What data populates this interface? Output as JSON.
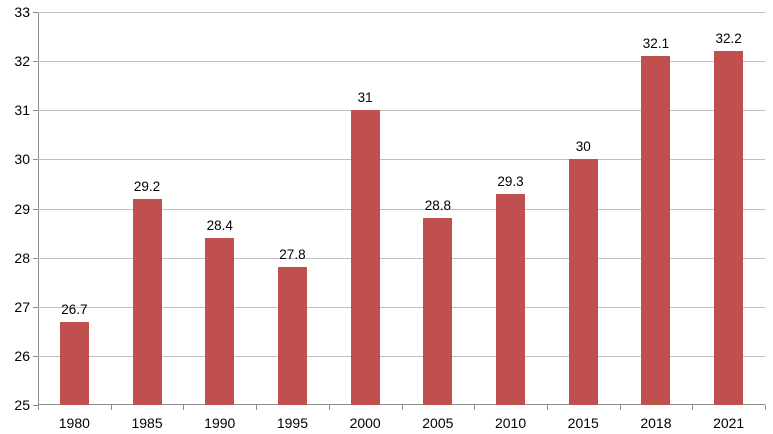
{
  "chart_data": {
    "type": "bar",
    "title": "",
    "xlabel": "",
    "ylabel": "",
    "categories": [
      "1980",
      "1985",
      "1990",
      "1995",
      "2000",
      "2005",
      "2010",
      "2015",
      "2018",
      "2021"
    ],
    "values": [
      26.7,
      29.2,
      28.4,
      27.8,
      31,
      28.8,
      29.3,
      30,
      32.1,
      32.2
    ],
    "value_labels": [
      "26.7",
      "29.2",
      "28.4",
      "27.8",
      "31",
      "28.8",
      "29.3",
      "30",
      "32.1",
      "32.2"
    ],
    "ylim": [
      25,
      33
    ],
    "ytick_step": 1,
    "ytick_labels": [
      "25",
      "26",
      "27",
      "28",
      "29",
      "30",
      "31",
      "32",
      "33"
    ],
    "grid": true,
    "legend": "none",
    "bar_color": "#c0504d",
    "gridline_color": "#c0c0c0",
    "axis_color": "#8e8e8e",
    "text_color": "#000000"
  }
}
